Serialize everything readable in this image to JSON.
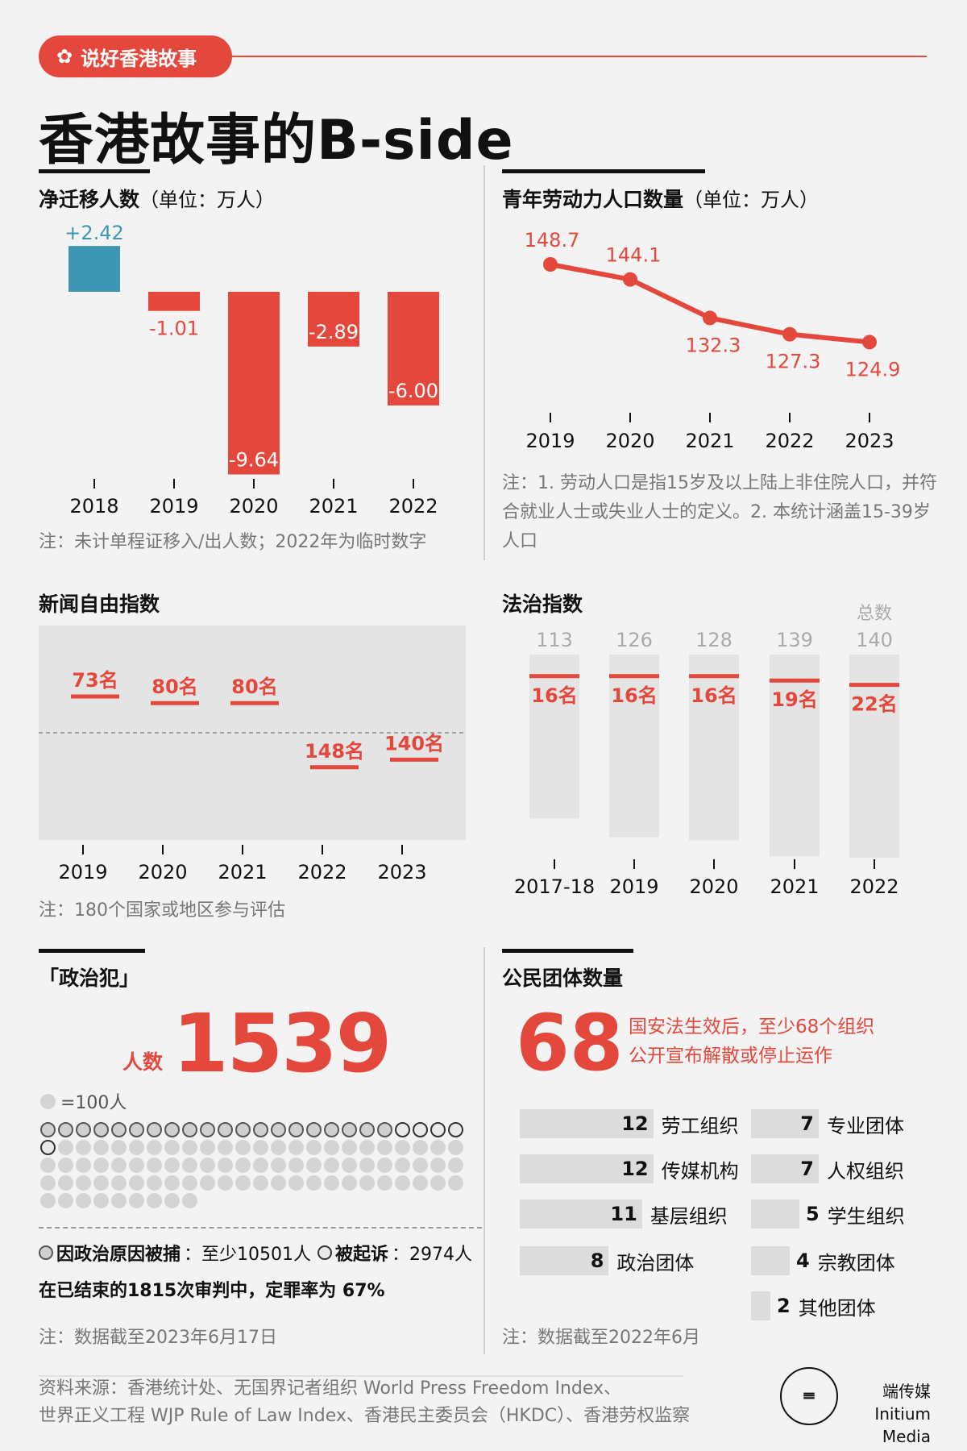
{
  "header": {
    "tag": "说好香港故事",
    "title": "香港故事的B-side"
  },
  "migration": {
    "title": "净迁移人数",
    "unit": "（单位：万人）",
    "note": "注：未计单程证移入/出人数；2022年为临时数字",
    "chart_data": {
      "type": "bar",
      "categories": [
        "2018",
        "2019",
        "2020",
        "2021",
        "2022"
      ],
      "values": [
        2.42,
        -1.01,
        -9.64,
        -2.89,
        -6.0
      ],
      "labels": [
        "+2.42",
        "-1.01",
        "-9.64",
        "-2.89",
        "-6.00"
      ],
      "colors": {
        "positive": "#3d97b3",
        "negative": "#e4483c"
      }
    }
  },
  "youth_labor": {
    "title": "青年劳动力人口数量",
    "unit": "（单位：万人）",
    "note": "注：1. 劳动人口是指15岁及以上陆上非住院人口，并符合就业人士或失业人士的定义。2. 本统计涵盖15-39岁人口",
    "chart_data": {
      "type": "line",
      "x": [
        "2019",
        "2020",
        "2021",
        "2022",
        "2023"
      ],
      "values": [
        148.7,
        144.1,
        132.3,
        127.3,
        124.9
      ],
      "color": "#e4483c"
    }
  },
  "press_freedom": {
    "title": "新闻自由指数",
    "note": "注：180个国家或地区参与评估",
    "chart_data": {
      "type": "scatter",
      "x": [
        "2019",
        "2020",
        "2021",
        "2022",
        "2023"
      ],
      "ranks": [
        73,
        80,
        80,
        148,
        140
      ],
      "labels": [
        "73名",
        "80名",
        "80名",
        "148名",
        "140名"
      ],
      "total": 180
    }
  },
  "rule_of_law": {
    "title": "法治指数",
    "total_label": "总数",
    "chart_data": {
      "type": "bar",
      "categories": [
        "2017-18",
        "2019",
        "2020",
        "2021",
        "2022"
      ],
      "totals": [
        113,
        126,
        128,
        139,
        140
      ],
      "ranks": [
        16,
        16,
        16,
        19,
        22
      ],
      "rank_labels": [
        "16名",
        "16名",
        "16名",
        "19名",
        "22名"
      ]
    }
  },
  "political_prisoners": {
    "title": "「政治犯」",
    "count_label": "人数",
    "count": "1539",
    "legend": "=100人",
    "arrested_label": "因政治原因被捕",
    "arrested_value": "：至少10501人",
    "charged_label": "被起诉",
    "charged_value": "：2974人",
    "conviction": "在已结束的1815次审判中，定罪率为 67%",
    "note": "注：数据截至2023年6月17日",
    "dots": {
      "total": 105,
      "arrested": 25,
      "charged": 5
    }
  },
  "civil_groups": {
    "title": "公民团体数量",
    "big_number": "68",
    "desc_line1": "国安法生效后，至少68个组织",
    "desc_line2": "公开宣布解散或停止运作",
    "note": "注：数据截至2022年6月",
    "chart_data": {
      "type": "bar",
      "categories": [
        "劳工组织",
        "传媒机构",
        "基层组织",
        "政治团体",
        "专业团体",
        "人权组织",
        "学生组织",
        "宗教团体",
        "其他团体"
      ],
      "values": [
        12,
        12,
        11,
        8,
        7,
        7,
        5,
        4,
        2
      ]
    }
  },
  "footer": {
    "source_line1": "资料来源：香港统计处、无国界记者组织 World Press Freedom Index、",
    "source_line2": "世界正义工程 WJP Rule of Law Index、香港民主委员会（HKDC）、香港劳权监察",
    "brand_cn": "端传媒",
    "brand_en": "Initium Media"
  }
}
